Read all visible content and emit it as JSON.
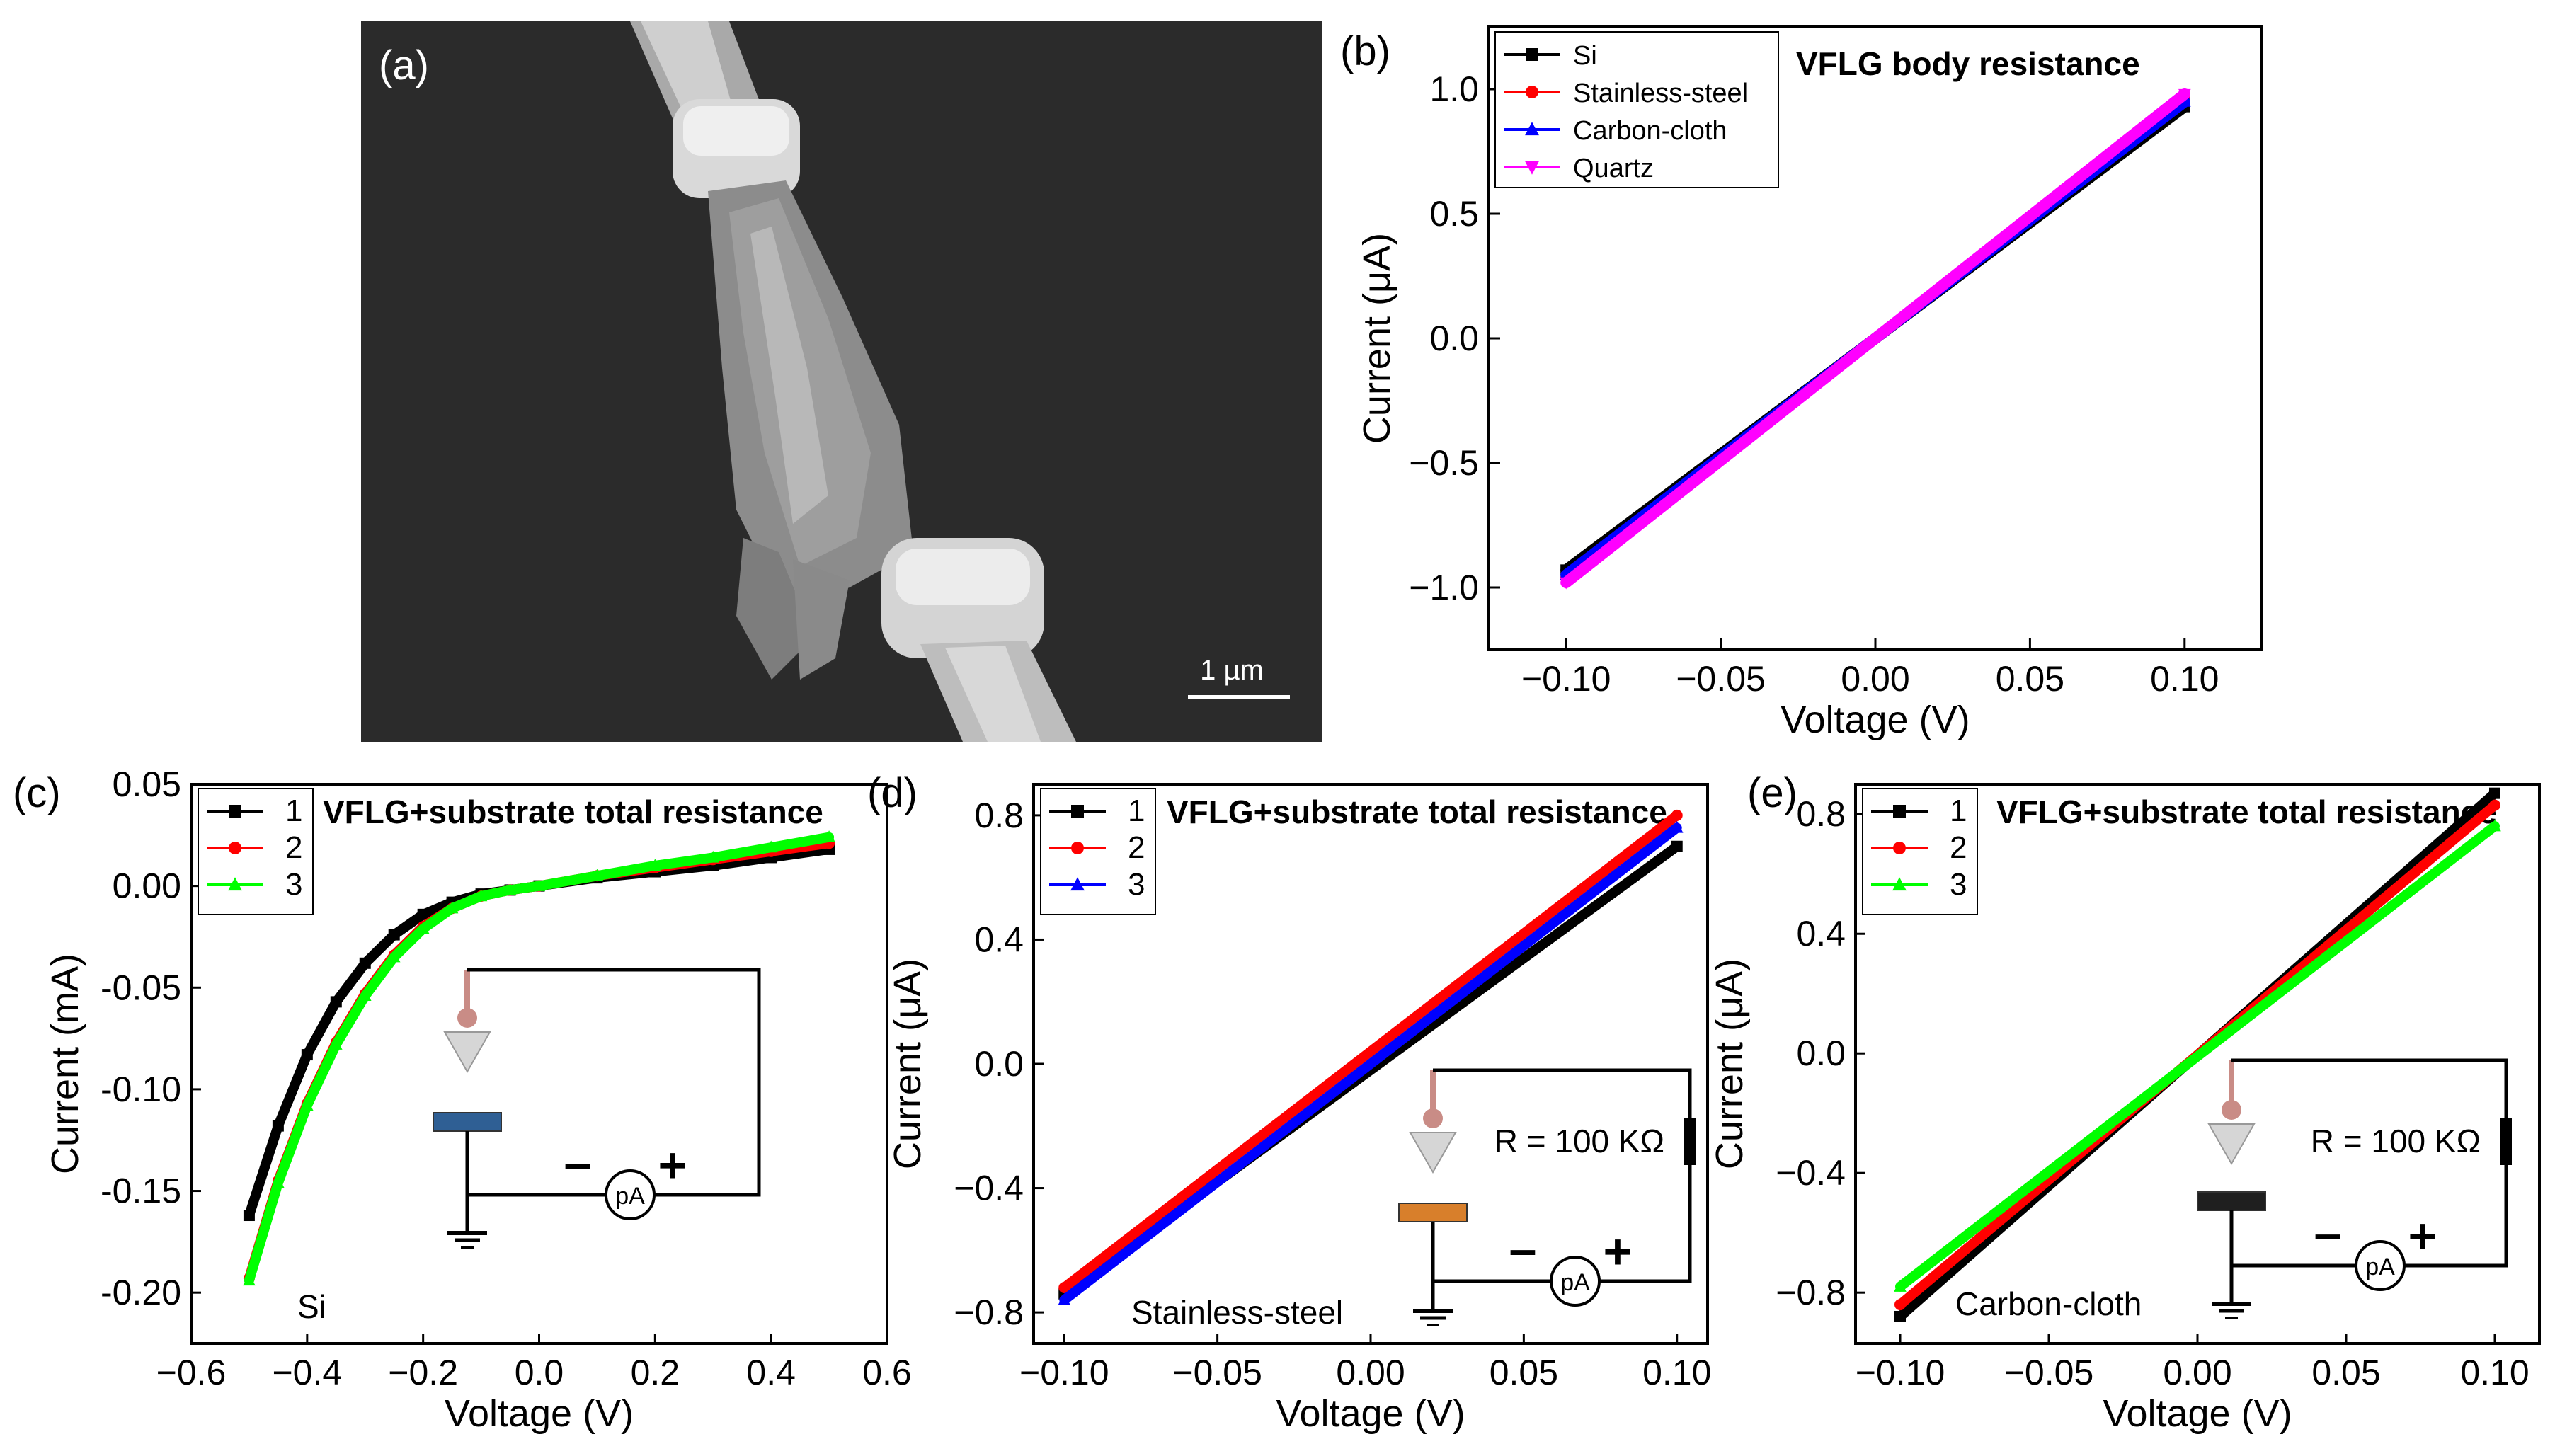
{
  "panel_a": {
    "label": "(a)",
    "scale_bar": "1 µm",
    "description_icon": "sem-micrograph-image"
  },
  "chart_data": [
    {
      "id": "b",
      "label": "(b)",
      "type": "line",
      "title": "VFLG  body resistance",
      "xlabel": "Voltage (V)",
      "ylabel": "Current (μA)",
      "xlim": [
        -0.125,
        0.125
      ],
      "ylim": [
        -1.25,
        1.25
      ],
      "xticks": [
        -0.1,
        -0.05,
        0.0,
        0.05,
        0.1
      ],
      "xtick_labels": [
        "−0.10",
        "−0.05",
        "0.00",
        "0.05",
        "0.10"
      ],
      "yticks": [
        -1.0,
        -0.5,
        0.0,
        0.5,
        1.0
      ],
      "ytick_labels": [
        "−1.0",
        "−0.5",
        "0.0",
        "0.5",
        "1.0"
      ],
      "legend": "top-left",
      "series": [
        {
          "name": "Si",
          "color": "#000000",
          "marker": "square",
          "x": [
            -0.1,
            0.1
          ],
          "y": [
            -0.93,
            0.93
          ]
        },
        {
          "name": "Stainless-steel",
          "color": "#ff0000",
          "marker": "circle",
          "x": [
            -0.1,
            0.1
          ],
          "y": [
            -0.96,
            0.96
          ]
        },
        {
          "name": "Carbon-cloth",
          "color": "#0000ff",
          "marker": "triangle-up",
          "x": [
            -0.1,
            0.1
          ],
          "y": [
            -0.95,
            0.95
          ]
        },
        {
          "name": "Quartz",
          "color": "#ff00ff",
          "marker": "triangle-down",
          "x": [
            -0.1,
            0.1
          ],
          "y": [
            -0.98,
            0.98
          ]
        }
      ]
    },
    {
      "id": "c",
      "label": "(c)",
      "type": "line",
      "title": "VFLG+substrate total resistance",
      "substrate": "Si",
      "xlabel": "Voltage (V)",
      "ylabel": "Current (mA)",
      "xlim": [
        -0.6,
        0.6
      ],
      "ylim": [
        -0.225,
        0.05
      ],
      "xticks": [
        -0.6,
        -0.4,
        -0.2,
        0.0,
        0.2,
        0.4,
        0.6
      ],
      "xtick_labels": [
        "−0.6",
        "−0.4",
        "−0.2",
        "0.0",
        "0.2",
        "0.4",
        "0.6"
      ],
      "yticks": [
        -0.2,
        -0.15,
        -0.1,
        -0.05,
        0.0,
        0.05
      ],
      "ytick_labels": [
        "-0.20",
        "-0.15",
        "-0.10",
        "-0.05",
        "0.00",
        "0.05"
      ],
      "legend": "top-left",
      "series": [
        {
          "name": "1",
          "color": "#000000",
          "marker": "square",
          "x": [
            -0.5,
            -0.45,
            -0.4,
            -0.35,
            -0.3,
            -0.25,
            -0.2,
            -0.15,
            -0.1,
            -0.05,
            0.0,
            0.1,
            0.2,
            0.3,
            0.4,
            0.5
          ],
          "y": [
            -0.162,
            -0.118,
            -0.083,
            -0.057,
            -0.038,
            -0.024,
            -0.014,
            -0.008,
            -0.004,
            -0.002,
            0.0,
            0.004,
            0.007,
            0.01,
            0.014,
            0.018
          ]
        },
        {
          "name": "2",
          "color": "#ff0000",
          "marker": "circle",
          "x": [
            -0.5,
            -0.45,
            -0.4,
            -0.35,
            -0.3,
            -0.25,
            -0.2,
            -0.15,
            -0.1,
            -0.05,
            0.0,
            0.1,
            0.2,
            0.3,
            0.4,
            0.5
          ],
          "y": [
            -0.193,
            -0.145,
            -0.107,
            -0.077,
            -0.053,
            -0.034,
            -0.02,
            -0.011,
            -0.005,
            -0.002,
            0.0,
            0.005,
            0.009,
            0.013,
            0.017,
            0.021
          ]
        },
        {
          "name": "3",
          "color": "#00ff00",
          "marker": "triangle-up",
          "x": [
            -0.5,
            -0.45,
            -0.4,
            -0.35,
            -0.3,
            -0.25,
            -0.2,
            -0.15,
            -0.1,
            -0.05,
            0.0,
            0.1,
            0.2,
            0.3,
            0.4,
            0.5
          ],
          "y": [
            -0.194,
            -0.146,
            -0.108,
            -0.078,
            -0.054,
            -0.035,
            -0.021,
            -0.011,
            -0.005,
            -0.002,
            0.0,
            0.005,
            0.01,
            0.014,
            0.019,
            0.024
          ]
        }
      ],
      "inset": {
        "meter": "pA",
        "minus": "–",
        "plus": "+",
        "resistor": ""
      }
    },
    {
      "id": "d",
      "label": "(d)",
      "type": "line",
      "title": "VFLG+substrate total resistance",
      "substrate": "Stainless-steel",
      "xlabel": "Voltage (V)",
      "ylabel": "Current (μA)",
      "xlim": [
        -0.11,
        0.11
      ],
      "ylim": [
        -0.9,
        0.9
      ],
      "xticks": [
        -0.1,
        -0.05,
        0.0,
        0.05,
        0.1
      ],
      "xtick_labels": [
        "−0.10",
        "−0.05",
        "0.00",
        "0.05",
        "0.10"
      ],
      "yticks": [
        -0.8,
        -0.4,
        0.0,
        0.4,
        0.8
      ],
      "ytick_labels": [
        "−0.8",
        "−0.4",
        "0.0",
        "0.4",
        "0.8"
      ],
      "legend": "top-left",
      "series": [
        {
          "name": "1",
          "color": "#000000",
          "marker": "square",
          "x": [
            -0.1,
            0.1
          ],
          "y": [
            -0.74,
            0.7
          ]
        },
        {
          "name": "2",
          "color": "#ff0000",
          "marker": "circle",
          "x": [
            -0.1,
            0.1
          ],
          "y": [
            -0.72,
            0.8
          ]
        },
        {
          "name": "3",
          "color": "#0000ff",
          "marker": "triangle-up",
          "x": [
            -0.1,
            0.1
          ],
          "y": [
            -0.76,
            0.76
          ]
        }
      ],
      "inset": {
        "resistor": "R = 100 KΩ",
        "meter": "pA",
        "minus": "–",
        "plus": "+"
      }
    },
    {
      "id": "e",
      "label": "(e)",
      "type": "line",
      "title": "VFLG+substrate total resistance",
      "substrate": "Carbon-cloth",
      "xlabel": "Voltage (V)",
      "ylabel": "Current (μA)",
      "xlim": [
        -0.115,
        0.115
      ],
      "ylim": [
        -0.97,
        0.9
      ],
      "xticks": [
        -0.1,
        -0.05,
        0.0,
        0.05,
        0.1
      ],
      "xtick_labels": [
        "−0.10",
        "−0.05",
        "0.00",
        "0.05",
        "0.10"
      ],
      "yticks": [
        -0.8,
        -0.4,
        0.0,
        0.4,
        0.8
      ],
      "ytick_labels": [
        "−0.8",
        "−0.4",
        "0.0",
        "0.4",
        "0.8"
      ],
      "legend": "top-left",
      "series": [
        {
          "name": "1",
          "color": "#000000",
          "marker": "square",
          "x": [
            -0.1,
            0.1
          ],
          "y": [
            -0.88,
            0.87
          ]
        },
        {
          "name": "2",
          "color": "#ff0000",
          "marker": "circle",
          "x": [
            -0.1,
            0.1
          ],
          "y": [
            -0.84,
            0.83
          ]
        },
        {
          "name": "3",
          "color": "#00ff00",
          "marker": "triangle-up",
          "x": [
            -0.1,
            0.1
          ],
          "y": [
            -0.78,
            0.76
          ]
        }
      ],
      "inset": {
        "resistor": "R = 100 KΩ",
        "meter": "pA",
        "minus": "–",
        "plus": "+"
      }
    }
  ]
}
